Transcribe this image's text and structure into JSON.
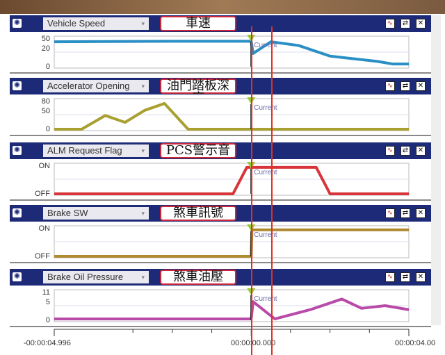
{
  "panels": [
    {
      "param": "Vehicle Speed",
      "label": "車速",
      "yticks": [
        "50",
        "20",
        "0"
      ],
      "ymax": 55,
      "color": "#2a8fc4",
      "series": [
        [
          -4.996,
          47
        ],
        [
          -2,
          48
        ],
        [
          0,
          48
        ],
        [
          0.05,
          25
        ],
        [
          0.5,
          47
        ],
        [
          1.2,
          40
        ],
        [
          2.0,
          20
        ],
        [
          3.2,
          10
        ],
        [
          3.6,
          5
        ],
        [
          4.0,
          5
        ]
      ]
    },
    {
      "param": "Accelerator Opening",
      "label": "油門踏板深度",
      "yticks": [
        "80",
        "50",
        "0"
      ],
      "ymax": 85,
      "color": "#a8a030",
      "series": [
        [
          -4.996,
          0
        ],
        [
          -4.3,
          0
        ],
        [
          -3.7,
          40
        ],
        [
          -3.2,
          20
        ],
        [
          -2.7,
          55
        ],
        [
          -2.2,
          75
        ],
        [
          -1.6,
          0
        ],
        [
          4.0,
          0
        ]
      ]
    },
    {
      "param": "ALM Request Flag",
      "label": "PCS警示音",
      "yticks": [
        "ON",
        "OFF"
      ],
      "ymax": 1.1,
      "color": "#d8343a",
      "series": [
        [
          -4.996,
          0
        ],
        [
          -0.46,
          0
        ],
        [
          -0.11,
          1
        ],
        [
          1.65,
          1
        ],
        [
          2.0,
          0
        ],
        [
          4.0,
          0
        ]
      ]
    },
    {
      "param": "Brake SW",
      "label": "煞車訊號",
      "yticks": [
        "ON",
        "OFF"
      ],
      "ymax": 1.1,
      "color": "#b08a30",
      "series": [
        [
          -4.996,
          0
        ],
        [
          0,
          0
        ],
        [
          0.02,
          1
        ],
        [
          4.0,
          1
        ]
      ]
    },
    {
      "param": "Brake Oil Pressure",
      "label": "煞車油壓",
      "yticks": [
        "11",
        "5",
        "0"
      ],
      "ymax": 11,
      "color": "#b84aa8",
      "series": [
        [
          -4.996,
          0.5
        ],
        [
          0,
          0.5
        ],
        [
          0.05,
          7
        ],
        [
          0.6,
          0.5
        ],
        [
          1.5,
          4
        ],
        [
          2.3,
          8
        ],
        [
          2.8,
          4.5
        ],
        [
          3.4,
          5.5
        ],
        [
          4.0,
          4
        ]
      ]
    }
  ],
  "cursor_label": "Current",
  "trigger_marker": "T2",
  "time_axis": {
    "start": "-00:00:04.996",
    "zero": "00:00:00.000",
    "end": "00:00:04.00"
  },
  "icons": [
    "gear-icon",
    "graph-icon",
    "swap-icon",
    "close-icon"
  ]
}
